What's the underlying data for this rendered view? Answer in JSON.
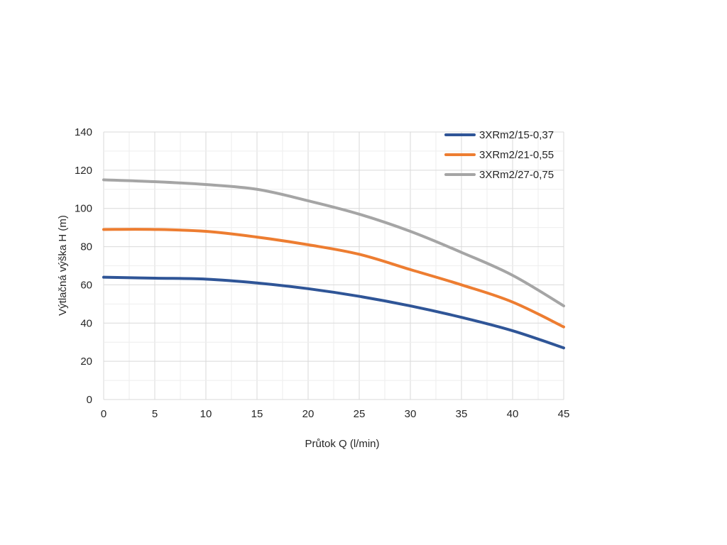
{
  "chart_data": {
    "type": "line",
    "title": "",
    "xlabel": "Průtok Q (l/min)",
    "ylabel": "Výtlačná výška H (m)",
    "xlim": [
      0,
      45
    ],
    "ylim": [
      0,
      140
    ],
    "xticks": [
      0,
      5,
      10,
      15,
      20,
      25,
      30,
      35,
      40,
      45
    ],
    "yticks": [
      0,
      20,
      40,
      60,
      80,
      100,
      120,
      140
    ],
    "grid": true,
    "legend_position": "top-right",
    "series": [
      {
        "name": "3XRm2/15-0,37",
        "color": "#2f5597",
        "x": [
          0,
          5,
          10,
          15,
          20,
          25,
          30,
          35,
          40,
          45
        ],
        "y": [
          64,
          63.5,
          63,
          61,
          58,
          54,
          49,
          43,
          36,
          27
        ]
      },
      {
        "name": "3XRm2/21-0,55",
        "color": "#ed7d31",
        "x": [
          0,
          5,
          10,
          15,
          20,
          25,
          30,
          35,
          40,
          45
        ],
        "y": [
          89,
          89,
          88,
          85,
          81,
          76,
          68,
          60,
          51,
          38
        ]
      },
      {
        "name": "3XRm2/27-0,75",
        "color": "#a5a5a5",
        "x": [
          0,
          5,
          10,
          15,
          20,
          25,
          30,
          35,
          40,
          45
        ],
        "y": [
          115,
          114,
          112.5,
          110,
          104,
          97,
          88,
          77,
          65,
          49
        ]
      }
    ]
  }
}
